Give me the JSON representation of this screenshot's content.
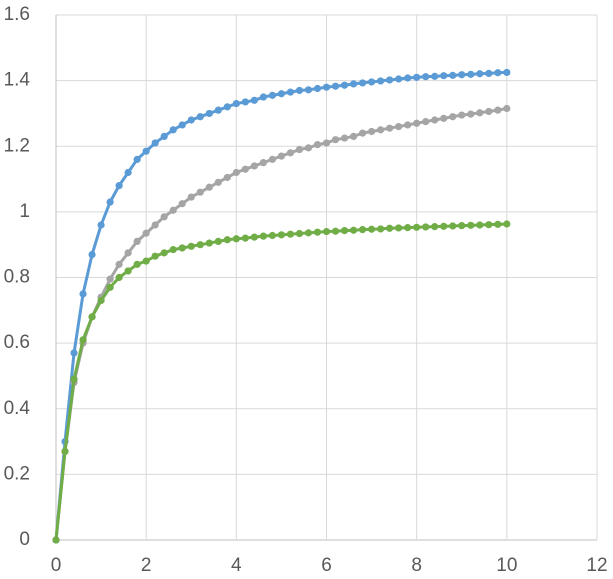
{
  "chart_data": {
    "type": "line",
    "markers": true,
    "grid": true,
    "xlim": [
      0,
      12
    ],
    "xticks": [
      0,
      2,
      4,
      6,
      8,
      10,
      12
    ],
    "ylim": [
      0,
      1.6
    ],
    "yticks": [
      0,
      0.2,
      0.4,
      0.6,
      0.8,
      1,
      1.2,
      1.4,
      1.6
    ],
    "x": [
      0,
      0.2,
      0.4,
      0.6,
      0.8,
      1,
      1.2,
      1.4,
      1.6,
      1.8,
      2,
      2.2,
      2.4,
      2.6,
      2.8,
      3,
      3.2,
      3.4,
      3.6,
      3.8,
      4,
      4.2,
      4.4,
      4.6,
      4.8,
      5,
      5.2,
      5.4,
      5.6,
      5.8,
      6,
      6.2,
      6.4,
      6.6,
      6.8,
      7,
      7.2,
      7.4,
      7.6,
      7.8,
      8,
      8.2,
      8.4,
      8.6,
      8.8,
      9,
      9.2,
      9.4,
      9.6,
      9.8,
      10
    ],
    "series": [
      {
        "color": "#5b9bd5",
        "values": [
          0,
          0.3,
          0.57,
          0.75,
          0.87,
          0.96,
          1.03,
          1.08,
          1.12,
          1.16,
          1.185,
          1.21,
          1.23,
          1.25,
          1.265,
          1.28,
          1.29,
          1.3,
          1.31,
          1.32,
          1.33,
          1.335,
          1.34,
          1.35,
          1.355,
          1.36,
          1.365,
          1.37,
          1.372,
          1.376,
          1.38,
          1.383,
          1.386,
          1.39,
          1.393,
          1.396,
          1.399,
          1.402,
          1.405,
          1.408,
          1.41,
          1.412,
          1.413,
          1.415,
          1.416,
          1.418,
          1.419,
          1.421,
          1.422,
          1.424,
          1.425
        ]
      },
      {
        "color": "#a5a5a5",
        "values": [
          0,
          0.27,
          0.48,
          0.6,
          0.68,
          0.74,
          0.795,
          0.84,
          0.875,
          0.91,
          0.935,
          0.96,
          0.985,
          1.005,
          1.025,
          1.045,
          1.06,
          1.075,
          1.09,
          1.105,
          1.12,
          1.13,
          1.14,
          1.15,
          1.16,
          1.17,
          1.18,
          1.19,
          1.195,
          1.205,
          1.21,
          1.22,
          1.225,
          1.23,
          1.24,
          1.245,
          1.25,
          1.255,
          1.26,
          1.265,
          1.27,
          1.275,
          1.28,
          1.285,
          1.29,
          1.295,
          1.298,
          1.302,
          1.306,
          1.31,
          1.315
        ]
      },
      {
        "color": "#70ad47",
        "values": [
          0,
          0.27,
          0.49,
          0.61,
          0.68,
          0.73,
          0.77,
          0.8,
          0.82,
          0.84,
          0.85,
          0.865,
          0.875,
          0.885,
          0.89,
          0.895,
          0.9,
          0.905,
          0.91,
          0.915,
          0.918,
          0.92,
          0.923,
          0.926,
          0.928,
          0.93,
          0.932,
          0.934,
          0.936,
          0.938,
          0.94,
          0.941,
          0.943,
          0.944,
          0.946,
          0.947,
          0.948,
          0.95,
          0.951,
          0.952,
          0.953,
          0.954,
          0.955,
          0.956,
          0.957,
          0.958,
          0.959,
          0.96,
          0.961,
          0.962,
          0.963
        ]
      }
    ]
  }
}
